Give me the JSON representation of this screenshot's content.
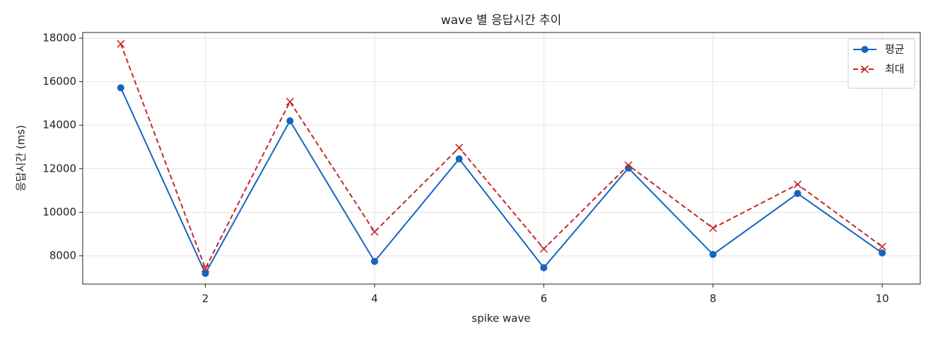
{
  "chart_data": {
    "type": "line",
    "title": "wave 별 응답시간 추이",
    "xlabel": "spike wave",
    "ylabel": "응답시간 (ms)",
    "x": [
      1,
      2,
      3,
      4,
      5,
      6,
      7,
      8,
      9,
      10
    ],
    "series": [
      {
        "name": "평균",
        "color": "#1565c0",
        "marker": "o",
        "linestyle": "solid",
        "values": [
          15720,
          7190,
          14200,
          7740,
          12450,
          7450,
          12030,
          8060,
          10860,
          8130
        ]
      },
      {
        "name": "최대",
        "color": "#c62828",
        "marker": "x",
        "linestyle": "dashed",
        "values": [
          17740,
          7420,
          15080,
          9100,
          12970,
          8320,
          12160,
          9270,
          11280,
          8420
        ]
      }
    ],
    "xlim": [
      0.55,
      10.45
    ],
    "xticks": [
      2,
      4,
      6,
      8,
      10
    ],
    "ylim": [
      6700,
      18260
    ],
    "yticks": [
      8000,
      10000,
      12000,
      14000,
      16000,
      18000
    ],
    "grid": true,
    "legend": "upper right"
  }
}
